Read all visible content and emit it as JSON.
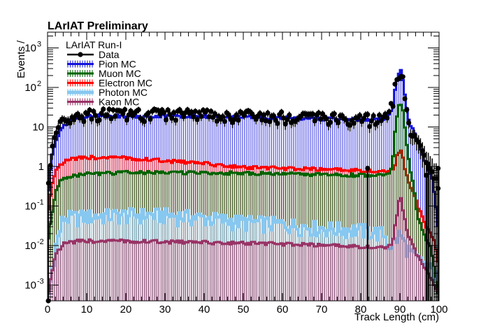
{
  "chart_data": {
    "type": "histogram",
    "title": "LArIAT Preliminary",
    "legend_header": "LArIAT Run-I",
    "legend_placement": "top-left",
    "xlabel": "Track Length (cm)",
    "ylabel": "Events /",
    "xlim": [
      0,
      100
    ],
    "ylim": [
      0.0004,
      2500
    ],
    "yscale": "log",
    "grid": false,
    "x_ticks": [
      0,
      10,
      20,
      30,
      40,
      50,
      60,
      70,
      80,
      90,
      100
    ],
    "y_ticks": [
      {
        "value": 0.001,
        "label": "10",
        "sup": "-3"
      },
      {
        "value": 0.01,
        "label": "10",
        "sup": "-2"
      },
      {
        "value": 0.1,
        "label": "10",
        "sup": "-1"
      },
      {
        "value": 1,
        "label": "1",
        "sup": ""
      },
      {
        "value": 10,
        "label": "10",
        "sup": ""
      },
      {
        "value": 100,
        "label": "10",
        "sup": "2"
      },
      {
        "value": 1000,
        "label": "10",
        "sup": "3"
      }
    ],
    "series": [
      {
        "name": "Data",
        "style": "points",
        "color": "#000000"
      },
      {
        "name": "Pion MC",
        "style": "hist",
        "color": "#1414dc",
        "knots": [
          [
            0,
            0.15
          ],
          [
            1,
            1.5
          ],
          [
            2,
            4
          ],
          [
            3,
            7
          ],
          [
            5,
            13
          ],
          [
            8,
            17
          ],
          [
            12,
            19
          ],
          [
            30,
            19
          ],
          [
            50,
            18
          ],
          [
            70,
            16
          ],
          [
            85,
            15
          ],
          [
            87,
            17
          ],
          [
            88,
            30
          ],
          [
            88.8,
            90
          ],
          [
            89.5,
            230
          ],
          [
            90.2,
            280
          ],
          [
            90.8,
            160
          ],
          [
            91.5,
            40
          ],
          [
            92.5,
            12
          ],
          [
            94,
            6
          ],
          [
            95,
            3
          ],
          [
            97,
            1
          ],
          [
            98.5,
            0.4
          ],
          [
            100,
            0.02
          ]
        ]
      },
      {
        "name": "Muon MC",
        "style": "hist",
        "color": "#006400",
        "knots": [
          [
            0,
            0.01
          ],
          [
            1,
            0.05
          ],
          [
            2,
            0.2
          ],
          [
            3,
            0.4
          ],
          [
            5,
            0.55
          ],
          [
            10,
            0.65
          ],
          [
            20,
            0.7
          ],
          [
            40,
            0.7
          ],
          [
            60,
            0.65
          ],
          [
            80,
            0.6
          ],
          [
            87,
            0.6
          ],
          [
            88,
            1
          ],
          [
            88.8,
            8
          ],
          [
            89.5,
            30
          ],
          [
            90.2,
            40
          ],
          [
            90.8,
            25
          ],
          [
            91.5,
            5
          ],
          [
            92.5,
            1
          ],
          [
            93.5,
            0.3
          ],
          [
            94.5,
            0.06
          ],
          [
            96,
            0.02
          ],
          [
            97,
            0.012
          ],
          [
            98,
            0.008
          ],
          [
            99,
            0.002
          ],
          [
            100,
            0.0004
          ]
        ]
      },
      {
        "name": "Electron MC",
        "style": "hist",
        "color": "#ff0000",
        "knots": [
          [
            0,
            0.05
          ],
          [
            1,
            0.3
          ],
          [
            2,
            0.8
          ],
          [
            4,
            1.3
          ],
          [
            7,
            1.6
          ],
          [
            12,
            1.7
          ],
          [
            20,
            1.65
          ],
          [
            30,
            1.4
          ],
          [
            40,
            1.2
          ],
          [
            50,
            0.95
          ],
          [
            60,
            0.9
          ],
          [
            70,
            0.85
          ],
          [
            80,
            0.8
          ],
          [
            87,
            0.75
          ],
          [
            88,
            0.8
          ],
          [
            88.8,
            1.2
          ],
          [
            89.5,
            2.2
          ],
          [
            90.2,
            2.8
          ],
          [
            90.8,
            1.5
          ],
          [
            91.5,
            0.7
          ],
          [
            92.5,
            0.35
          ],
          [
            94,
            0.15
          ],
          [
            95.5,
            0.06
          ],
          [
            97,
            0.025
          ],
          [
            98,
            0.02
          ],
          [
            99,
            0.012
          ],
          [
            100,
            0.003
          ]
        ]
      },
      {
        "name": "Photon MC",
        "style": "hist",
        "color": "#87c8f0",
        "knots": [
          [
            0,
            0.0004
          ],
          [
            2,
            0.008
          ],
          [
            4,
            0.05
          ],
          [
            10,
            0.055
          ],
          [
            20,
            0.06
          ],
          [
            30,
            0.06
          ],
          [
            40,
            0.05
          ],
          [
            50,
            0.04
          ],
          [
            60,
            0.035
          ],
          [
            70,
            0.028
          ],
          [
            80,
            0.025
          ],
          [
            86,
            0.02
          ],
          [
            87,
            0.01
          ],
          [
            88.5,
            0.012
          ],
          [
            90,
            0.02
          ],
          [
            91,
            0.012
          ],
          [
            93,
            0.006
          ],
          [
            95,
            0.004
          ],
          [
            97,
            0.003
          ],
          [
            100,
            0.0015
          ]
        ]
      },
      {
        "name": "Kaon MC",
        "style": "hist",
        "color": "#993366",
        "knots": [
          [
            0,
            0.0005
          ],
          [
            1,
            0.002
          ],
          [
            2,
            0.006
          ],
          [
            4,
            0.011
          ],
          [
            8,
            0.013
          ],
          [
            20,
            0.013
          ],
          [
            40,
            0.012
          ],
          [
            60,
            0.011
          ],
          [
            80,
            0.0095
          ],
          [
            87,
            0.009
          ],
          [
            88,
            0.012
          ],
          [
            89,
            0.04
          ],
          [
            89.7,
            0.14
          ],
          [
            90.3,
            0.15
          ],
          [
            91,
            0.06
          ],
          [
            92,
            0.02
          ],
          [
            94,
            0.007
          ],
          [
            96,
            0.003
          ],
          [
            98,
            0.0015
          ],
          [
            100,
            0.0006
          ]
        ]
      }
    ],
    "data_points": {
      "bin_width": 0.5,
      "base_knots": [
        [
          0,
          0.2
        ],
        [
          1,
          2
        ],
        [
          2,
          6
        ],
        [
          3,
          10
        ],
        [
          4,
          15
        ],
        [
          5,
          17
        ],
        [
          8,
          20
        ],
        [
          15,
          22
        ],
        [
          25,
          21
        ],
        [
          40,
          20
        ],
        [
          55,
          19
        ],
        [
          70,
          17
        ],
        [
          80,
          16
        ],
        [
          85,
          15
        ],
        [
          87,
          18
        ],
        [
          88,
          35
        ],
        [
          89,
          150
        ],
        [
          89.8,
          250
        ],
        [
          90.5,
          230
        ],
        [
          91.2,
          60
        ],
        [
          92,
          15
        ],
        [
          93,
          8
        ],
        [
          94.5,
          4
        ],
        [
          96,
          2
        ],
        [
          97.5,
          0.9
        ],
        [
          99,
          0.4
        ],
        [
          100,
          0.3
        ]
      ],
      "low_points": [
        [
          0.2,
          0.0004
        ],
        [
          81.75,
          0.9
        ],
        [
          96.75,
          0.6
        ],
        [
          97.25,
          0.9
        ],
        [
          99.75,
          0.9
        ]
      ]
    }
  },
  "legend": [
    {
      "label": "Data",
      "color": "#000000",
      "marker": "point"
    },
    {
      "label": "Pion MC",
      "color": "#1414dc",
      "marker": "hist"
    },
    {
      "label": "Muon MC",
      "color": "#006400",
      "marker": "hist"
    },
    {
      "label": "Electron MC",
      "color": "#ff0000",
      "marker": "hist"
    },
    {
      "label": "Photon MC",
      "color": "#87c8f0",
      "marker": "hist"
    },
    {
      "label": "Kaon MC",
      "color": "#993366",
      "marker": "hist"
    }
  ]
}
